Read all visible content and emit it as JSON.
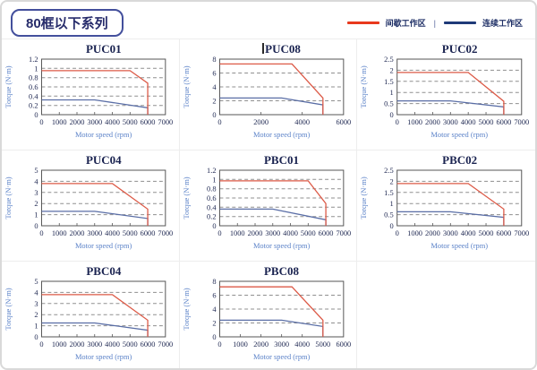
{
  "header": {
    "title": "80框以下系列"
  },
  "legend": {
    "separator": "|",
    "items": [
      {
        "label": "间歇工作区",
        "color": "#e8391d"
      },
      {
        "label": "连续工作区",
        "color": "#1f3a78"
      }
    ]
  },
  "colors": {
    "intermittent": "#dc5a47",
    "continuous": "#5a6ea6",
    "grid": "#8f8f8f",
    "axis": "#555555",
    "tick_text": "#232c55",
    "axis_label": "#5b82c8"
  },
  "chart_data": [
    {
      "type": "line",
      "title": "PUC01",
      "xlabel": "Motor speed (rpm)",
      "ylabel": "Torque (N·m)",
      "xlim": [
        0,
        7000
      ],
      "ylim": [
        0,
        1.2
      ],
      "xticks": [
        0,
        1000,
        2000,
        3000,
        4000,
        5000,
        6000,
        7000
      ],
      "yticks": [
        0,
        0.2,
        0.4,
        0.6,
        0.8,
        1,
        1.2
      ],
      "grid": "horizontal-dashed",
      "legend_position": "none",
      "series": [
        {
          "name": "间歇工作区",
          "color_key": "intermittent",
          "points": [
            [
              0,
              0.95
            ],
            [
              5000,
              0.95
            ],
            [
              6000,
              0.68
            ],
            [
              6000,
              0
            ]
          ]
        },
        {
          "name": "连续工作区",
          "color_key": "continuous",
          "points": [
            [
              0,
              0.32
            ],
            [
              3000,
              0.32
            ],
            [
              6000,
              0.15
            ],
            [
              6000,
              0
            ]
          ]
        }
      ]
    },
    {
      "type": "line",
      "title": "PUC08",
      "xlabel": "Motor speed (rpm)",
      "ylabel": "Torque (N·m)",
      "xlim": [
        0,
        6000
      ],
      "ylim": [
        0,
        8
      ],
      "xticks": [
        0,
        2000,
        4000,
        6000
      ],
      "yticks": [
        0,
        2,
        4,
        6,
        8
      ],
      "grid": "horizontal-dashed",
      "legend_position": "none",
      "series": [
        {
          "name": "间歇工作区",
          "color_key": "intermittent",
          "points": [
            [
              0,
              7.3
            ],
            [
              3500,
              7.3
            ],
            [
              5000,
              2.4
            ],
            [
              5000,
              0
            ]
          ]
        },
        {
          "name": "连续工作区",
          "color_key": "continuous",
          "points": [
            [
              0,
              2.4
            ],
            [
              3000,
              2.4
            ],
            [
              5000,
              1.4
            ],
            [
              5000,
              0
            ]
          ]
        }
      ]
    },
    {
      "type": "line",
      "title": "PUC02",
      "xlabel": "Motor speed (rpm)",
      "ylabel": "Torque (N·m)",
      "xlim": [
        0,
        7000
      ],
      "ylim": [
        0,
        2.5
      ],
      "xticks": [
        0,
        1000,
        2000,
        3000,
        4000,
        5000,
        6000,
        7000
      ],
      "yticks": [
        0,
        0.5,
        1,
        1.5,
        2,
        2.5
      ],
      "grid": "horizontal-dashed",
      "legend_position": "none",
      "series": [
        {
          "name": "间歇工作区",
          "color_key": "intermittent",
          "points": [
            [
              0,
              1.9
            ],
            [
              4000,
              1.9
            ],
            [
              6000,
              0.6
            ],
            [
              6000,
              0
            ]
          ]
        },
        {
          "name": "连续工作区",
          "color_key": "continuous",
          "points": [
            [
              0,
              0.62
            ],
            [
              3000,
              0.62
            ],
            [
              6000,
              0.35
            ],
            [
              6000,
              0
            ]
          ]
        }
      ]
    },
    {
      "type": "line",
      "title": "PUC04",
      "xlabel": "Motor speed (rpm)",
      "ylabel": "Torque (N·m)",
      "xlim": [
        0,
        7000
      ],
      "ylim": [
        0,
        5
      ],
      "xticks": [
        0,
        1000,
        2000,
        3000,
        4000,
        5000,
        6000,
        7000
      ],
      "yticks": [
        0,
        1,
        2,
        3,
        4,
        5
      ],
      "grid": "horizontal-dashed",
      "legend_position": "none",
      "series": [
        {
          "name": "间歇工作区",
          "color_key": "intermittent",
          "points": [
            [
              0,
              3.8
            ],
            [
              4000,
              3.8
            ],
            [
              6000,
              1.5
            ],
            [
              6000,
              0
            ]
          ]
        },
        {
          "name": "连续工作区",
          "color_key": "continuous",
          "points": [
            [
              0,
              1.3
            ],
            [
              3000,
              1.3
            ],
            [
              6000,
              0.65
            ],
            [
              6000,
              0
            ]
          ]
        }
      ]
    },
    {
      "type": "line",
      "title": "PBC01",
      "xlabel": "Motor speed (rpm)",
      "ylabel": "Torque (N·m)",
      "xlim": [
        0,
        7000
      ],
      "ylim": [
        0,
        1.2
      ],
      "xticks": [
        0,
        1000,
        2000,
        3000,
        4000,
        5000,
        6000,
        7000
      ],
      "yticks": [
        0,
        0.2,
        0.4,
        0.6,
        0.8,
        1,
        1.2
      ],
      "grid": "horizontal-dashed",
      "legend_position": "none",
      "series": [
        {
          "name": "间歇工作区",
          "color_key": "intermittent",
          "points": [
            [
              0,
              0.97
            ],
            [
              5000,
              0.97
            ],
            [
              6000,
              0.48
            ],
            [
              6000,
              0
            ]
          ]
        },
        {
          "name": "连续工作区",
          "color_key": "continuous",
          "points": [
            [
              0,
              0.36
            ],
            [
              3000,
              0.36
            ],
            [
              6000,
              0.13
            ],
            [
              6000,
              0
            ]
          ]
        }
      ]
    },
    {
      "type": "line",
      "title": "PBC02",
      "xlabel": "Motor speed (rpm)",
      "ylabel": "Torque (N·m)",
      "xlim": [
        0,
        7000
      ],
      "ylim": [
        0,
        2.5
      ],
      "xticks": [
        0,
        1000,
        2000,
        3000,
        4000,
        5000,
        6000,
        7000
      ],
      "yticks": [
        0,
        0.5,
        1,
        1.5,
        2,
        2.5
      ],
      "grid": "horizontal-dashed",
      "legend_position": "none",
      "series": [
        {
          "name": "间歇工作区",
          "color_key": "intermittent",
          "points": [
            [
              0,
              1.9
            ],
            [
              4000,
              1.9
            ],
            [
              6000,
              0.75
            ],
            [
              6000,
              0
            ]
          ]
        },
        {
          "name": "连续工作区",
          "color_key": "continuous",
          "points": [
            [
              0,
              0.63
            ],
            [
              3000,
              0.63
            ],
            [
              6000,
              0.38
            ],
            [
              6000,
              0
            ]
          ]
        }
      ]
    },
    {
      "type": "line",
      "title": "PBC04",
      "xlabel": "Motor speed (rpm)",
      "ylabel": "Torque (N·m)",
      "xlim": [
        0,
        7000
      ],
      "ylim": [
        0,
        5
      ],
      "xticks": [
        0,
        1000,
        2000,
        3000,
        4000,
        5000,
        6000,
        7000
      ],
      "yticks": [
        0,
        1,
        2,
        3,
        4,
        5
      ],
      "grid": "horizontal-dashed",
      "legend_position": "none",
      "series": [
        {
          "name": "间歇工作区",
          "color_key": "intermittent",
          "points": [
            [
              0,
              3.8
            ],
            [
              4000,
              3.8
            ],
            [
              6000,
              1.5
            ],
            [
              6000,
              0
            ]
          ]
        },
        {
          "name": "连续工作区",
          "color_key": "continuous",
          "points": [
            [
              0,
              1.25
            ],
            [
              3000,
              1.25
            ],
            [
              6000,
              0.6
            ],
            [
              6000,
              0
            ]
          ]
        }
      ]
    },
    {
      "type": "line",
      "title": "PBC08",
      "xlabel": "Motor speed (rpm)",
      "ylabel": "Torque (N·m)",
      "xlim": [
        0,
        6000
      ],
      "ylim": [
        0,
        8
      ],
      "xticks": [
        0,
        1000,
        2000,
        3000,
        4000,
        5000,
        6000
      ],
      "yticks": [
        0,
        2,
        4,
        6,
        8
      ],
      "grid": "horizontal-dashed",
      "legend_position": "none",
      "series": [
        {
          "name": "间歇工作区",
          "color_key": "intermittent",
          "points": [
            [
              0,
              7.2
            ],
            [
              3500,
              7.2
            ],
            [
              5000,
              2.4
            ],
            [
              5000,
              0
            ]
          ]
        },
        {
          "name": "连续工作区",
          "color_key": "continuous",
          "points": [
            [
              0,
              2.4
            ],
            [
              3000,
              2.4
            ],
            [
              5000,
              1.5
            ],
            [
              5000,
              0
            ]
          ]
        }
      ]
    }
  ]
}
